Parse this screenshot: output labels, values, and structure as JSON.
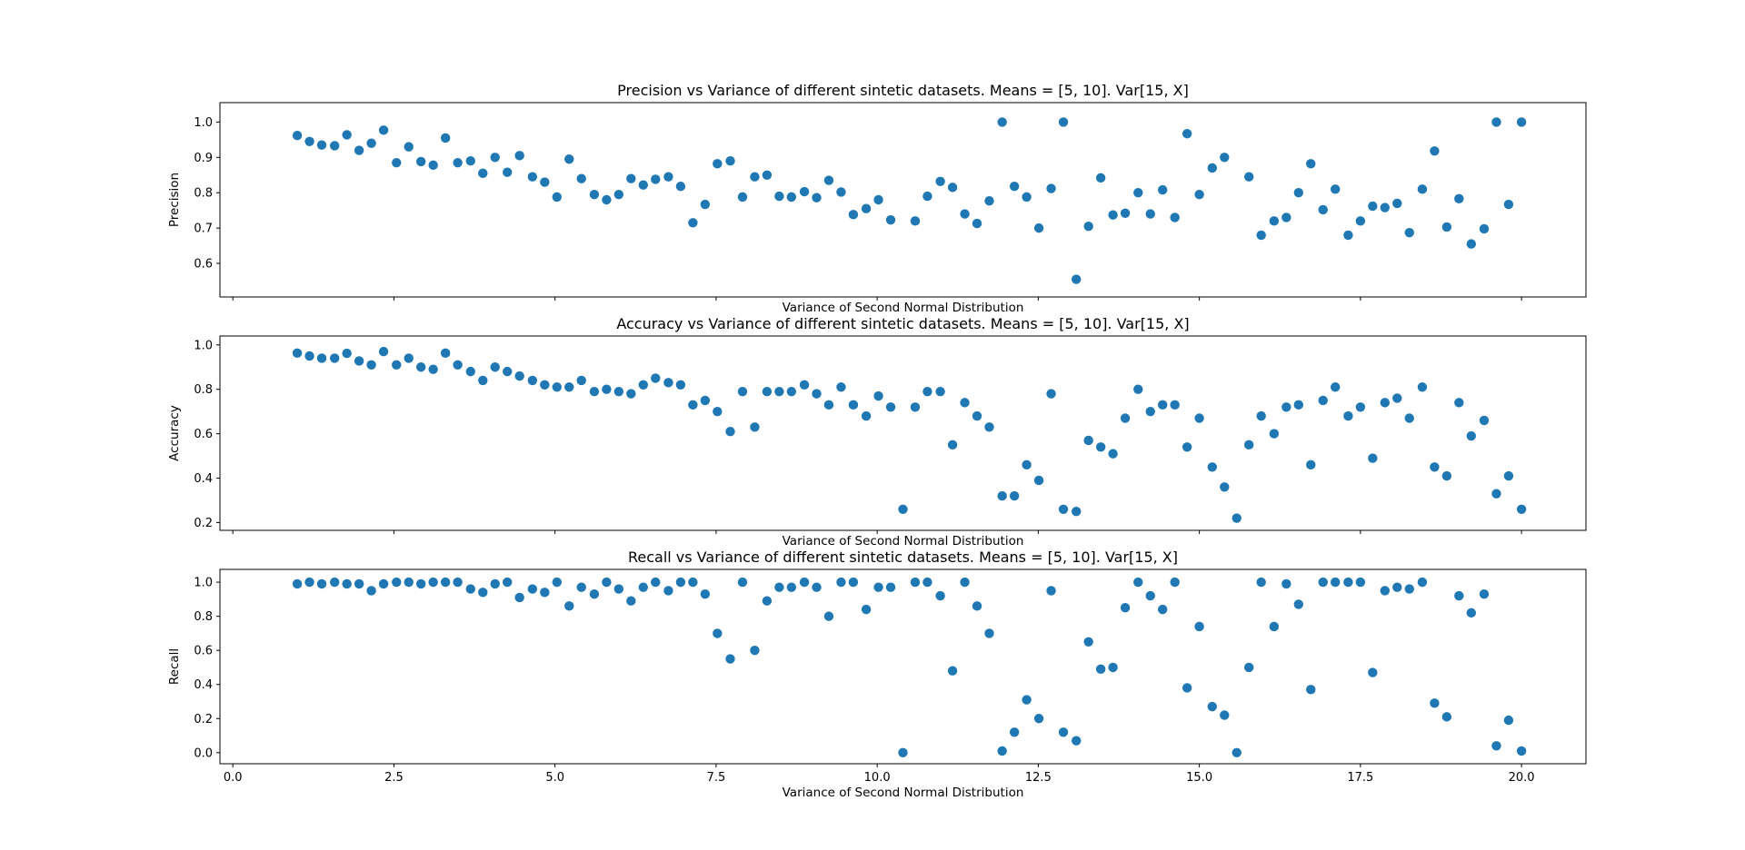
{
  "chart_data": [
    {
      "type": "scatter",
      "title": "Precision vs Variance of different sintetic datasets. Means = [5, 10]. Var[15, X]",
      "xlabel": "Variance of Second Normal Distribution",
      "ylabel": "Precision",
      "xlim": [
        -0.2,
        21.0
      ],
      "ylim": [
        0.505,
        1.055
      ],
      "xticks": [
        0.0,
        2.5,
        5.0,
        7.5,
        10.0,
        12.5,
        15.0,
        17.5,
        20.0
      ],
      "xtick_labels_visible": false,
      "yticks": [
        0.6,
        0.7,
        0.8,
        0.9,
        1.0
      ],
      "ytick_labels": [
        "0.6",
        "0.7",
        "0.8",
        "0.9",
        "1.0"
      ],
      "color": "#1f77b4",
      "series": [
        {
          "x": [
            1.0,
            1.19,
            1.38,
            1.58,
            1.77,
            1.96,
            2.15,
            2.34,
            2.54,
            2.73,
            2.92,
            3.11,
            3.3,
            3.49,
            3.69,
            3.88,
            4.07,
            4.26,
            4.45,
            4.65,
            4.84,
            5.03,
            5.22,
            5.41,
            5.61,
            5.8,
            5.99,
            6.18,
            6.37,
            6.56,
            6.76,
            6.95,
            7.14,
            7.33,
            7.52,
            7.72,
            7.91,
            8.1,
            8.29,
            8.48,
            8.67,
            8.87,
            9.06,
            9.25,
            9.44,
            9.63,
            9.83,
            10.02,
            10.21,
            10.59,
            10.78,
            10.98,
            11.17,
            11.36,
            11.55,
            11.74,
            11.94,
            12.13,
            12.32,
            12.51,
            12.7,
            12.89,
            13.09,
            13.28,
            13.47,
            13.66,
            13.85,
            14.05,
            14.24,
            14.43,
            14.62,
            14.81,
            15.0,
            15.2,
            15.39,
            15.77,
            15.96,
            16.16,
            16.35,
            16.54,
            16.73,
            16.92,
            17.11,
            17.31,
            17.5,
            17.69,
            17.88,
            18.07,
            18.26,
            18.46,
            18.65,
            18.84,
            19.03,
            19.22,
            19.42,
            19.61,
            19.8,
            20.0
          ],
          "y": [
            0.962,
            0.945,
            0.935,
            0.933,
            0.964,
            0.92,
            0.94,
            0.977,
            0.885,
            0.93,
            0.888,
            0.878,
            0.955,
            0.885,
            0.89,
            0.855,
            0.9,
            0.858,
            0.905,
            0.845,
            0.83,
            0.788,
            0.895,
            0.84,
            0.795,
            0.78,
            0.795,
            0.84,
            0.822,
            0.838,
            0.845,
            0.818,
            0.715,
            0.767,
            0.882,
            0.89,
            0.788,
            0.845,
            0.85,
            0.79,
            0.788,
            0.803,
            0.786,
            0.835,
            0.802,
            0.738,
            0.755,
            0.78,
            0.723,
            0.72,
            0.79,
            0.832,
            0.815,
            0.74,
            0.713,
            0.777,
            1.0,
            0.818,
            0.788,
            0.7,
            0.812,
            1.0,
            0.555,
            0.705,
            0.842,
            0.737,
            0.742,
            0.8,
            0.74,
            0.808,
            0.73,
            0.967,
            0.795,
            0.87,
            0.9,
            0.845,
            0.68,
            0.72,
            0.73,
            0.8,
            0.882,
            0.752,
            0.81,
            0.68,
            0.72,
            0.762,
            0.758,
            0.77,
            0.687,
            0.81,
            0.918,
            0.703,
            0.783,
            0.655,
            0.698,
            1.0,
            0.767,
            1.0
          ]
        }
      ]
    },
    {
      "type": "scatter",
      "title": "Accuracy vs Variance of different sintetic datasets. Means = [5, 10]. Var[15, X]",
      "xlabel": "Variance of Second Normal Distribution",
      "ylabel": "Accuracy",
      "xlim": [
        -0.2,
        21.0
      ],
      "ylim": [
        0.165,
        1.04
      ],
      "xticks": [
        0.0,
        2.5,
        5.0,
        7.5,
        10.0,
        12.5,
        15.0,
        17.5,
        20.0
      ],
      "xtick_labels_visible": false,
      "yticks": [
        0.2,
        0.4,
        0.6,
        0.8,
        1.0
      ],
      "ytick_labels": [
        "0.2",
        "0.4",
        "0.6",
        "0.8",
        "1.0"
      ],
      "color": "#1f77b4",
      "series": [
        {
          "x": [
            1.0,
            1.19,
            1.38,
            1.58,
            1.77,
            1.96,
            2.15,
            2.34,
            2.54,
            2.73,
            2.92,
            3.11,
            3.3,
            3.49,
            3.69,
            3.88,
            4.07,
            4.26,
            4.45,
            4.65,
            4.84,
            5.03,
            5.22,
            5.41,
            5.61,
            5.8,
            5.99,
            6.18,
            6.37,
            6.56,
            6.76,
            6.95,
            7.14,
            7.33,
            7.52,
            7.72,
            7.91,
            8.1,
            8.29,
            8.48,
            8.67,
            8.87,
            9.06,
            9.25,
            9.44,
            9.63,
            9.83,
            10.02,
            10.21,
            10.4,
            10.59,
            10.78,
            10.98,
            11.17,
            11.36,
            11.55,
            11.74,
            11.94,
            12.13,
            12.32,
            12.51,
            12.7,
            12.89,
            13.09,
            13.28,
            13.47,
            13.66,
            13.85,
            14.05,
            14.24,
            14.43,
            14.62,
            14.81,
            15.0,
            15.2,
            15.39,
            15.58,
            15.77,
            15.96,
            16.16,
            16.35,
            16.54,
            16.73,
            16.92,
            17.11,
            17.31,
            17.5,
            17.69,
            17.88,
            18.07,
            18.26,
            18.46,
            18.65,
            18.84,
            19.03,
            19.22,
            19.42,
            19.61,
            19.8,
            20.0
          ],
          "y": [
            0.963,
            0.95,
            0.94,
            0.94,
            0.962,
            0.928,
            0.91,
            0.97,
            0.91,
            0.94,
            0.9,
            0.89,
            0.963,
            0.91,
            0.88,
            0.84,
            0.9,
            0.88,
            0.86,
            0.84,
            0.82,
            0.81,
            0.81,
            0.84,
            0.79,
            0.8,
            0.79,
            0.78,
            0.82,
            0.85,
            0.83,
            0.82,
            0.73,
            0.75,
            0.7,
            0.61,
            0.79,
            0.63,
            0.79,
            0.79,
            0.79,
            0.82,
            0.78,
            0.73,
            0.81,
            0.73,
            0.68,
            0.77,
            0.72,
            0.26,
            0.72,
            0.79,
            0.79,
            0.55,
            0.74,
            0.68,
            0.63,
            0.32,
            0.32,
            0.46,
            0.39,
            0.78,
            0.26,
            0.25,
            0.57,
            0.54,
            0.51,
            0.67,
            0.8,
            0.7,
            0.73,
            0.73,
            0.54,
            0.67,
            0.45,
            0.36,
            0.22,
            0.55,
            0.68,
            0.6,
            0.72,
            0.73,
            0.46,
            0.75,
            0.81,
            0.68,
            0.72,
            0.49,
            0.74,
            0.76,
            0.67,
            0.81,
            0.45,
            0.41,
            0.74,
            0.59,
            0.66,
            0.33,
            0.41,
            0.26
          ]
        }
      ]
    },
    {
      "type": "scatter",
      "title": "Recall vs Variance of different sintetic datasets. Means = [5, 10]. Var[15, X]",
      "xlabel": "Variance of Second Normal Distribution",
      "ylabel": "Recall",
      "xlim": [
        -0.2,
        21.0
      ],
      "ylim": [
        -0.065,
        1.075
      ],
      "xticks": [
        0.0,
        2.5,
        5.0,
        7.5,
        10.0,
        12.5,
        15.0,
        17.5,
        20.0
      ],
      "xtick_labels": [
        "0.0",
        "2.5",
        "5.0",
        "7.5",
        "10.0",
        "12.5",
        "15.0",
        "17.5",
        "20.0"
      ],
      "yticks": [
        0.0,
        0.2,
        0.4,
        0.6,
        0.8,
        1.0
      ],
      "ytick_labels": [
        "0.0",
        "0.2",
        "0.4",
        "0.6",
        "0.8",
        "1.0"
      ],
      "color": "#1f77b4",
      "series": [
        {
          "x": [
            1.0,
            1.19,
            1.38,
            1.58,
            1.77,
            1.96,
            2.15,
            2.34,
            2.54,
            2.73,
            2.92,
            3.11,
            3.3,
            3.49,
            3.69,
            3.88,
            4.07,
            4.26,
            4.45,
            4.65,
            4.84,
            5.03,
            5.22,
            5.41,
            5.61,
            5.8,
            5.99,
            6.18,
            6.37,
            6.56,
            6.76,
            6.95,
            7.14,
            7.33,
            7.52,
            7.72,
            7.91,
            8.1,
            8.29,
            8.48,
            8.67,
            8.87,
            9.06,
            9.25,
            9.44,
            9.63,
            9.83,
            10.02,
            10.21,
            10.4,
            10.59,
            10.78,
            10.98,
            11.17,
            11.36,
            11.55,
            11.74,
            11.94,
            12.13,
            12.32,
            12.51,
            12.7,
            12.89,
            13.09,
            13.28,
            13.47,
            13.66,
            13.85,
            14.05,
            14.24,
            14.43,
            14.62,
            14.81,
            15.0,
            15.2,
            15.39,
            15.58,
            15.77,
            15.96,
            16.16,
            16.35,
            16.54,
            16.73,
            16.92,
            17.11,
            17.31,
            17.5,
            17.69,
            17.88,
            18.07,
            18.26,
            18.46,
            18.65,
            18.84,
            19.03,
            19.22,
            19.42,
            19.61,
            19.8,
            20.0
          ],
          "y": [
            0.99,
            1.0,
            0.99,
            1.0,
            0.99,
            0.99,
            0.95,
            0.99,
            1.0,
            1.0,
            0.99,
            1.0,
            1.0,
            1.0,
            0.96,
            0.94,
            0.99,
            1.0,
            0.91,
            0.96,
            0.94,
            1.0,
            0.86,
            0.97,
            0.93,
            1.0,
            0.96,
            0.89,
            0.97,
            1.0,
            0.95,
            1.0,
            1.0,
            0.93,
            0.7,
            0.55,
            1.0,
            0.6,
            0.89,
            0.97,
            0.97,
            1.0,
            0.97,
            0.8,
            1.0,
            1.0,
            0.84,
            0.97,
            0.97,
            0.0,
            1.0,
            1.0,
            0.92,
            0.48,
            1.0,
            0.86,
            0.7,
            0.01,
            0.12,
            0.31,
            0.2,
            0.95,
            0.12,
            0.07,
            0.65,
            0.49,
            0.5,
            0.85,
            1.0,
            0.92,
            0.84,
            1.0,
            0.38,
            0.74,
            0.27,
            0.22,
            0.0,
            0.5,
            1.0,
            0.74,
            0.99,
            0.87,
            0.37,
            1.0,
            1.0,
            1.0,
            1.0,
            0.47,
            0.95,
            0.97,
            0.96,
            1.0,
            0.29,
            0.21,
            0.92,
            0.82,
            0.93,
            0.04,
            0.19,
            0.01
          ]
        }
      ]
    }
  ]
}
